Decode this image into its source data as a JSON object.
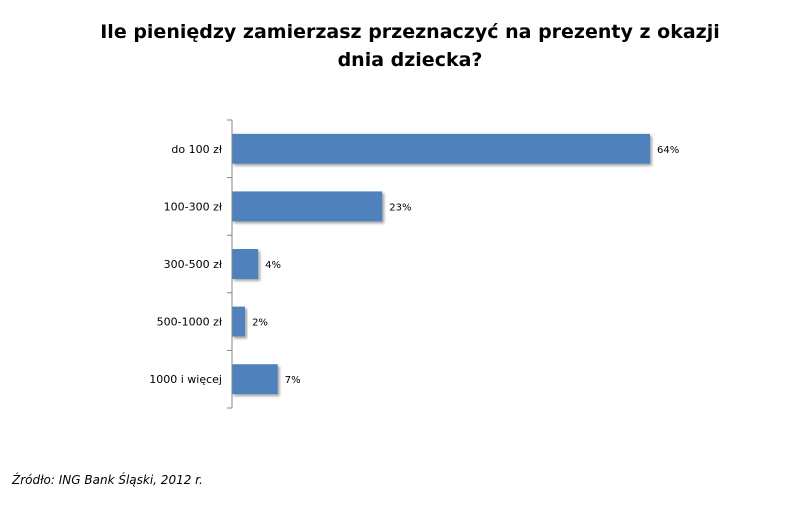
{
  "chart_data": {
    "type": "bar",
    "orientation": "horizontal",
    "title": "Ile pieniędzy zamierzasz przeznaczyć na prezenty z okazji dnia dziecka?",
    "categories": [
      "do 100 zł",
      "100-300 zł",
      "300-500 zł",
      "500-1000 zł",
      "1000 i więcej"
    ],
    "values": [
      64,
      23,
      4,
      2,
      7
    ],
    "value_labels": [
      "64%",
      "23%",
      "4%",
      "2%",
      "7%"
    ],
    "xlim": [
      0,
      64
    ],
    "bar_color": "#4F81BD",
    "grid": false,
    "legend": "none"
  },
  "source": "Źródło: ING Bank Śląski, 2012 r."
}
